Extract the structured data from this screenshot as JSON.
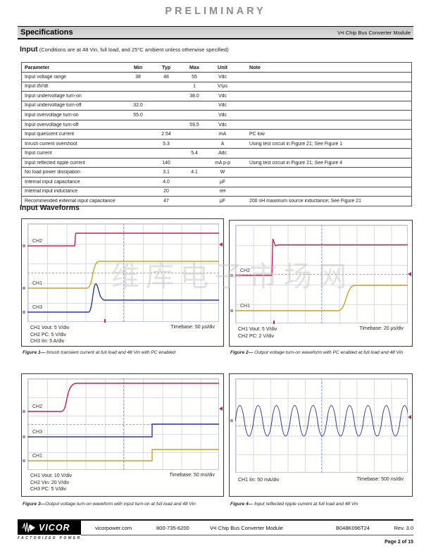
{
  "page": {
    "preliminary": "PRELIMINARY",
    "page_number": "Page 2 of 15"
  },
  "header": {
    "title": "Specifications",
    "product": "V•I Chip Bus Converter Module"
  },
  "input_section": {
    "heading": "Input",
    "conditions": " (Conditions are at 48 Vin, full load, and 25°C ambient unless otherwise specified)"
  },
  "table": {
    "columns": [
      "Parameter",
      "Min",
      "Typ",
      "Max",
      "Unit",
      "Note"
    ],
    "rows": [
      {
        "param": "Input voltage range",
        "min": "38",
        "typ": "48",
        "max": "55",
        "unit": "Vdc",
        "note": ""
      },
      {
        "param": "Input dV/dt",
        "min": "",
        "typ": "",
        "max": "1",
        "unit": "V/µs",
        "note": ""
      },
      {
        "param": "Input undervoltage turn-on",
        "min": "",
        "typ": "",
        "max": "38.0",
        "unit": "Vdc",
        "note": ""
      },
      {
        "param": "Input undervoltage turn-off",
        "min": "32.0",
        "typ": "",
        "max": "",
        "unit": "Vdc",
        "note": ""
      },
      {
        "param": "Input overvoltage turn-on",
        "min": "55.0",
        "typ": "",
        "max": "",
        "unit": "Vdc",
        "note": ""
      },
      {
        "param": "Input overvoltage turn-off",
        "min": "",
        "typ": "",
        "max": "59.5",
        "unit": "Vdc",
        "note": ""
      },
      {
        "param": "Input quiescent current",
        "min": "",
        "typ": "2.54",
        "max": "",
        "unit": "mA",
        "note": "PC low"
      },
      {
        "param": "Inrush current overshoot",
        "min": "",
        "typ": "5.3",
        "max": "",
        "unit": "A",
        "note": "Using test circuit in Figure 21; See Figure 1"
      },
      {
        "param": "Input current",
        "min": "",
        "typ": "",
        "max": "5.4",
        "unit": "Adc",
        "note": ""
      },
      {
        "param": "Input reflected ripple current",
        "min": "",
        "typ": "140",
        "max": "",
        "unit": "mA p-p",
        "note": "Using test circuit in Figure 21; See Figure 4"
      },
      {
        "param": "No load power dissipation",
        "min": "",
        "typ": "3.1",
        "max": "4.1",
        "unit": "W",
        "note": ""
      },
      {
        "param": "Internal input capacitance",
        "min": "",
        "typ": "4.0",
        "max": "",
        "unit": "µF",
        "note": ""
      },
      {
        "param": "Internal input inductance",
        "min": "",
        "typ": "20",
        "max": "",
        "unit": "nH",
        "note": ""
      },
      {
        "param": "Recommended external input capacitance",
        "min": "",
        "typ": "47",
        "max": "",
        "unit": "µF",
        "note": "200 nH maximum source inductance; See Figure 21"
      }
    ]
  },
  "waveforms": {
    "heading": "Input Waveforms",
    "figures": [
      {
        "channels": [
          "CH2",
          "CH1",
          "CH3"
        ],
        "settings": [
          "CH1 Vout: 5 V/div",
          "CH2 PC: 5 V/div",
          "CH3 Iin: 5 A/div"
        ],
        "timebase": "Timebase: 50  µs/div",
        "caption_label": "Figure 1—",
        "caption_text": " Inrush transient current at full load and 48 Vin with PC enabled"
      },
      {
        "channels": [
          "CH2",
          "CH1"
        ],
        "settings": [
          "CH1 Vout: 5 V/div",
          "CH2 PC: 2 V/div"
        ],
        "timebase": "Timebase: 20  µs/div",
        "caption_label": "Figure 2—",
        "caption_text": " Output voltage turn-on waveform with PC enabled at full load and 48 Vin"
      },
      {
        "channels": [
          "CH2",
          "CH3",
          "CH1"
        ],
        "settings": [
          "CH1 Vout: 10 V/div",
          "CH2 Vin: 20 V/div",
          "CH3 PC: 5 V/div"
        ],
        "timebase": "Timebase: 50 ms/div",
        "caption_label": "Figure 3—",
        "caption_text": "Output voltage turn-on waveform with input turn-on at full load and 48 Vin"
      },
      {
        "channels": [],
        "settings": [
          "CH1 Iin: 50 mA/div"
        ],
        "timebase": "Timebase: 500 ns/div",
        "caption_label": "Figure 4—",
        "caption_text": " Input reflected ripple current at full load and 48 Vin"
      }
    ]
  },
  "watermark": "维库电子市场网",
  "footer": {
    "logo": "VICOR",
    "tagline": "FACTORIZED POWER",
    "website": "vicorpower.com",
    "phone": "800-735-6200",
    "product": "V•I Chip Bus Converter Module",
    "part_number": "B048K096T24",
    "revision": "Rev. 3.0"
  },
  "colors": {
    "waveform_red": "#ce1f4e",
    "waveform_yellow": "#c4a32b",
    "waveform_blue": "#2c3a9d",
    "grid_line": "#d9dbe7",
    "header_bar_bg": "#d2d2d2",
    "preliminary_gray": "#8c8c8c"
  }
}
